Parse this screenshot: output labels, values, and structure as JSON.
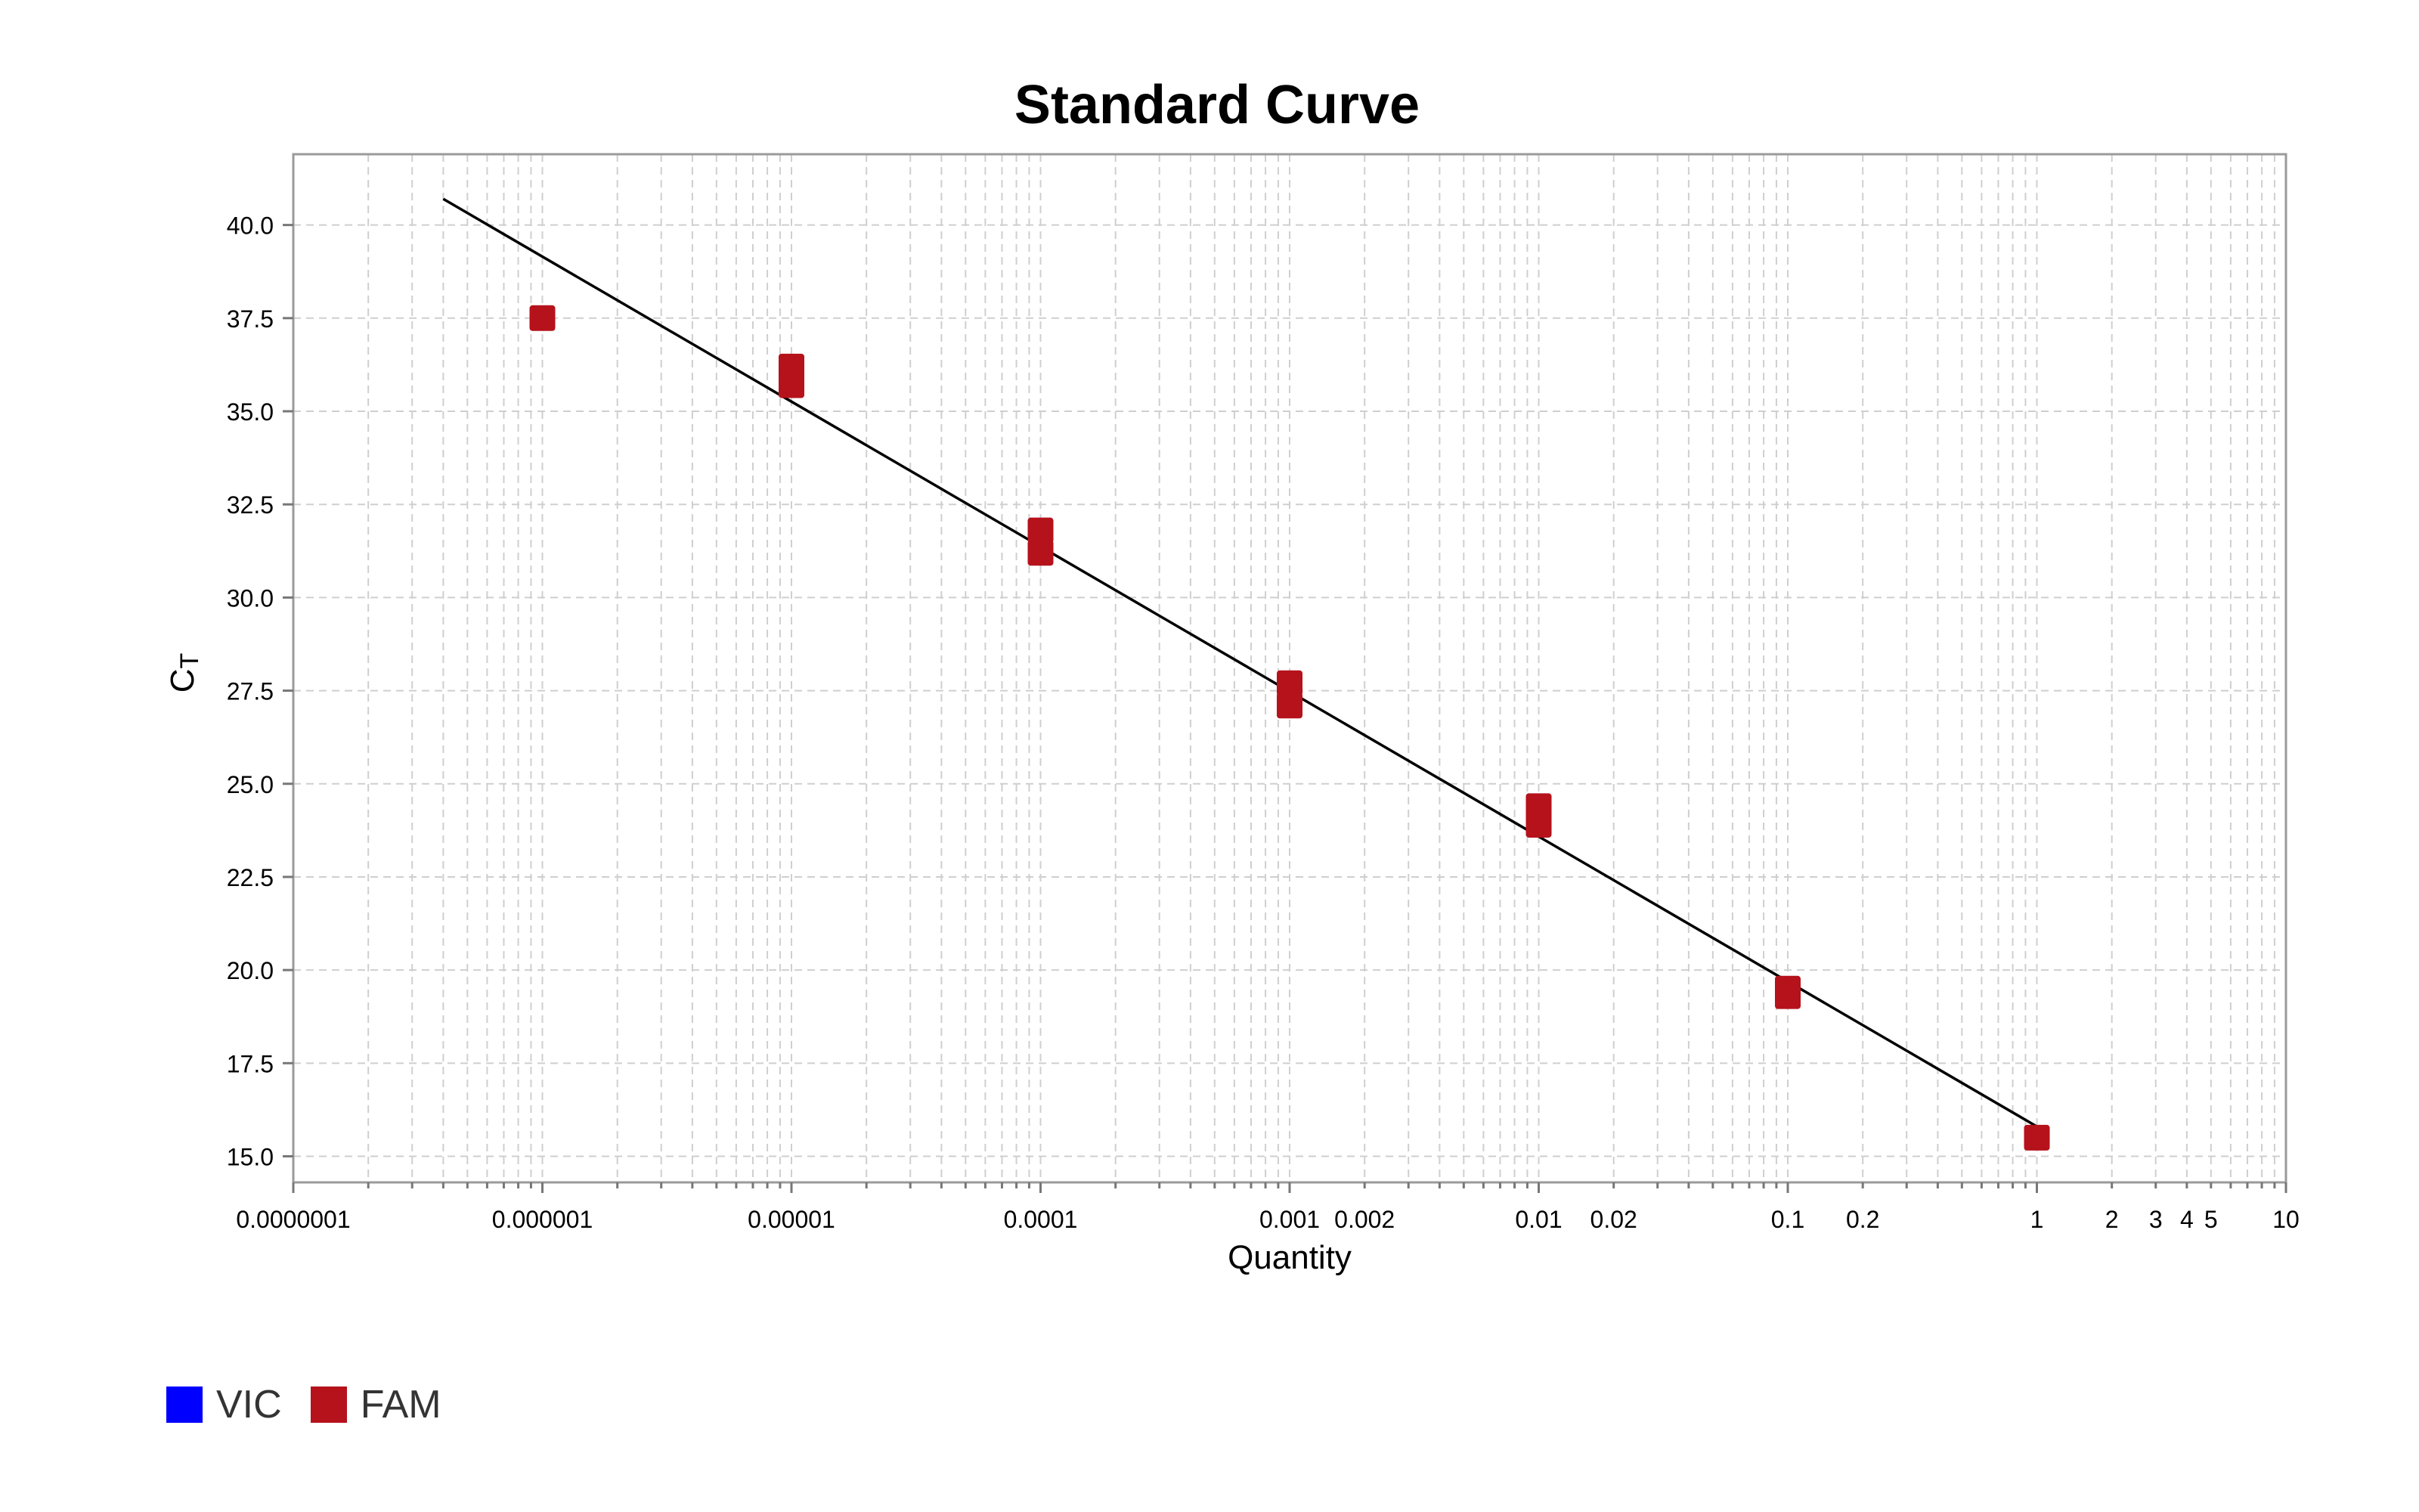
{
  "chart_data": {
    "type": "scatter",
    "title": "Standard Curve",
    "xlabel": "Quantity",
    "ylabel_main": "C",
    "ylabel_sub": "T",
    "x_scale": "log",
    "xlim": [
      1e-07,
      10
    ],
    "ylim": [
      14.3,
      41.9
    ],
    "grid": true,
    "x_tick_labels": [
      {
        "value": 1e-07,
        "label": "0.0000001"
      },
      {
        "value": 1e-06,
        "label": "0.000001"
      },
      {
        "value": 1e-05,
        "label": "0.00001"
      },
      {
        "value": 0.0001,
        "label": "0.0001"
      },
      {
        "value": 0.001,
        "label": "0.001"
      },
      {
        "value": 0.002,
        "label": "0.002"
      },
      {
        "value": 0.01,
        "label": "0.01"
      },
      {
        "value": 0.02,
        "label": "0.02"
      },
      {
        "value": 0.1,
        "label": "0.1"
      },
      {
        "value": 0.2,
        "label": "0.2"
      },
      {
        "value": 1,
        "label": "1"
      },
      {
        "value": 2,
        "label": "2"
      },
      {
        "value": 3,
        "label": "3"
      },
      {
        "value": 4,
        "label": "4"
      },
      {
        "value": 5,
        "label": "5"
      },
      {
        "value": 10,
        "label": "10"
      }
    ],
    "y_ticks": [
      15.0,
      17.5,
      20.0,
      22.5,
      25.0,
      27.5,
      30.0,
      32.5,
      35.0,
      37.5,
      40.0
    ],
    "y_tick_labels": [
      "15.0",
      "17.5",
      "20.0",
      "22.5",
      "25.0",
      "27.5",
      "30.0",
      "32.5",
      "35.0",
      "37.5",
      "40.0"
    ],
    "series": [
      {
        "name": "FAM",
        "color": "#b5121b",
        "points": [
          {
            "x": 1e-06,
            "y": 37.5
          },
          {
            "x": 1e-05,
            "y": 36.2
          },
          {
            "x": 1e-05,
            "y": 35.7
          },
          {
            "x": 0.0001,
            "y": 31.8
          },
          {
            "x": 0.0001,
            "y": 31.2
          },
          {
            "x": 0.001,
            "y": 27.7
          },
          {
            "x": 0.001,
            "y": 27.1
          },
          {
            "x": 0.01,
            "y": 24.4
          },
          {
            "x": 0.01,
            "y": 23.9
          },
          {
            "x": 0.1,
            "y": 19.5
          },
          {
            "x": 0.1,
            "y": 19.3
          },
          {
            "x": 1,
            "y": 15.5
          }
        ]
      }
    ],
    "fit_line": {
      "color": "#000000",
      "points": [
        {
          "x": 4e-07,
          "y": 40.7
        },
        {
          "x": 1,
          "y": 15.8
        }
      ]
    },
    "legend": {
      "placement": "bottom-left",
      "items": [
        {
          "name": "VIC",
          "color": "#0000ff"
        },
        {
          "name": "FAM",
          "color": "#b5121b"
        }
      ]
    }
  }
}
